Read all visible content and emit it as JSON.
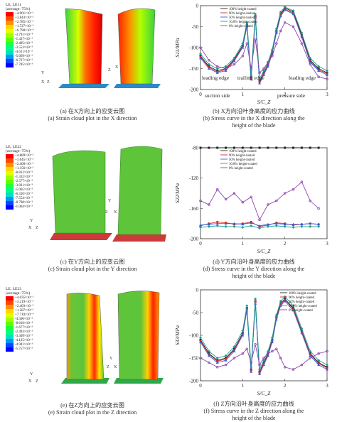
{
  "panels": {
    "a": {
      "legend_title": "LE, LE11",
      "legend_avg": "(average: 75%)",
      "legend_values": [
        "+4.901×10⁻³",
        "+3.843×10⁻³",
        "+2.785×10⁻³",
        "+1.727×10⁻³",
        "+6.790×10⁻⁴",
        "-3.791×10⁻⁴",
        "-1.437×10⁻³",
        "-2.495×10⁻³",
        "-3.553×10⁻³",
        "-4.611×10⁻³",
        "-5.669×10⁻³",
        "-6.727×10⁻³",
        "-7.785×10⁻³"
      ],
      "caption_cn": "(a) 在X方向上的应变云图",
      "caption_en": "(a) Strain cloud plot in the X direction"
    },
    "b": {
      "caption_cn": "(b) X方向沿叶身高度的应力曲线",
      "caption_en1": "(b) Stress curve in the X direction along the",
      "caption_en2": "height of the blade",
      "annotations": [
        "leading edge",
        "trailing edge",
        "leading edge",
        "suction side",
        "pressure side"
      ]
    },
    "c": {
      "legend_title": "LE, LE22",
      "legend_avg": "(average: 75%)",
      "legend_values": [
        "+4.889×10⁻³",
        "+3.645×10⁻³",
        "+2.400×10⁻³",
        "+1.156×10⁻³",
        "-8.812×10⁻⁵",
        "-1.332×10⁻³",
        "-2.577×10⁻³",
        "-3.821×10⁻³",
        "-5.065×10⁻³",
        "-6.310×10⁻³",
        "-7.554×10⁻³",
        "-8.798×10⁻³",
        "-1.004×10⁻²"
      ],
      "caption_cn": "(c) 在Y方向上的应变云图",
      "caption_en": "(c) Strain cloud plot in the Y direction"
    },
    "d": {
      "caption_cn": "(d) Y方向沿叶身高度的应力曲线",
      "caption_en1": "(d) Stress curve in the Y direction along the",
      "caption_en2": "height of the blade"
    },
    "e": {
      "legend_title": "LE, LE33",
      "legend_avg": "(average: 75%)",
      "legend_values": [
        "+4.035×10⁻³",
        "+3.219×10⁻³",
        "+2.403×10⁻³",
        "+1.587×10⁻³",
        "+7.710×10⁻⁴",
        "-4.500×10⁻⁵",
        "-8.610×10⁻⁴",
        "-1.677×10⁻³",
        "-2.493×10⁻³",
        "-3.309×10⁻³",
        "-4.125×10⁻³",
        "-4.941×10⁻³",
        "-5.757×10⁻³"
      ],
      "caption_cn": "(e) 在Z方向上的应变云图",
      "caption_en": "(e) Strain cloud plot in the Z direction"
    },
    "f": {
      "caption_cn": "(f) Z方向沿叶身高度的应力曲线",
      "caption_en1": "(f) Stress curve in the Z direction along the",
      "caption_en2": "height of the blade"
    }
  },
  "colors": {
    "legend_scale": [
      "#ff0000",
      "#ff4a00",
      "#ff9400",
      "#ffd600",
      "#e2ff00",
      "#a0ff00",
      "#5cff00",
      "#1fff32",
      "#00ff84",
      "#00e0c8",
      "#0095ff",
      "#0048ff",
      "#0000ff"
    ],
    "series": [
      "#222222",
      "#d62728",
      "#3b5bdb",
      "#1f9e89",
      "#8e44ad"
    ]
  },
  "chart_data": [
    {
      "type": "line",
      "xlabel": "S/C_Z",
      "ylabel": "S11/MPa",
      "xlim": [
        0,
        3
      ],
      "ylim": [
        -200,
        0
      ],
      "x_ticks": [
        0,
        1,
        2,
        3
      ],
      "y_ticks": [
        0,
        -50,
        -100,
        -150,
        -200
      ],
      "legend_position": "top-center",
      "x": [
        0,
        0.2,
        0.4,
        0.6,
        0.8,
        1.0,
        1.1,
        1.2,
        1.3,
        1.4,
        1.5,
        1.6,
        1.7,
        1.8,
        1.9,
        2.0,
        2.2,
        2.4,
        2.6,
        2.8,
        3.0
      ],
      "series": [
        {
          "name": "100% height-coated",
          "values": [
            -120,
            -145,
            -155,
            -150,
            -128,
            -95,
            -45,
            -170,
            -25,
            -180,
            -160,
            -140,
            -110,
            -60,
            -20,
            -5,
            -15,
            -70,
            -130,
            -150,
            -160
          ]
        },
        {
          "name": "90% height-coated",
          "values": [
            -122,
            -147,
            -158,
            -152,
            -130,
            -97,
            -48,
            -172,
            -28,
            -182,
            -162,
            -142,
            -112,
            -63,
            -22,
            -8,
            -18,
            -73,
            -133,
            -153,
            -162
          ]
        },
        {
          "name": "50% height-coated",
          "values": [
            -125,
            -150,
            -160,
            -155,
            -132,
            -100,
            -50,
            -175,
            -30,
            -185,
            -165,
            -145,
            -115,
            -65,
            -25,
            -10,
            -20,
            -75,
            -135,
            -155,
            -165
          ]
        },
        {
          "name": "10.8% height-coated",
          "values": [
            -115,
            -140,
            -150,
            -145,
            -125,
            -90,
            -40,
            -165,
            -20,
            -175,
            -155,
            -135,
            -105,
            -55,
            -15,
            -3,
            -12,
            -65,
            -125,
            -145,
            -155
          ]
        },
        {
          "name": "0% height-coated",
          "values": [
            -100,
            -130,
            -145,
            -150,
            -140,
            -120,
            -90,
            -150,
            -80,
            -160,
            -150,
            -135,
            -120,
            -90,
            -60,
            -40,
            -50,
            -90,
            -140,
            -170,
            -175
          ]
        }
      ]
    },
    {
      "type": "line",
      "xlabel": "S/C_Z",
      "ylabel": "S22/MPa",
      "xlim": [
        0,
        3
      ],
      "ylim": [
        -200,
        -80
      ],
      "x_ticks": [
        0,
        1,
        2,
        3
      ],
      "y_ticks": [
        -80,
        -120,
        -160,
        -200
      ],
      "legend_position": "top-center",
      "x": [
        0,
        0.2,
        0.4,
        0.6,
        0.8,
        1.0,
        1.2,
        1.4,
        1.6,
        1.8,
        2.0,
        2.2,
        2.4,
        2.6,
        2.8
      ],
      "series": [
        {
          "name": "100% height-coated",
          "values": [
            -75,
            -75,
            -76,
            -76,
            -77,
            -77,
            -76,
            -77,
            -78,
            -77,
            -76,
            -76,
            -75,
            -75,
            -75
          ]
        },
        {
          "name": "90% height-coated",
          "values": [
            -183,
            -180,
            -178,
            -179,
            -181,
            -180,
            -178,
            -184,
            -182,
            -179,
            -180,
            -182,
            -181,
            -180,
            -181
          ]
        },
        {
          "name": "50% height-coated",
          "values": [
            -182,
            -181,
            -180,
            -180,
            -180,
            -181,
            -179,
            -183,
            -181,
            -180,
            -181,
            -181,
            -181,
            -180,
            -181
          ]
        },
        {
          "name": "10.8% height-coated",
          "values": [
            -185,
            -184,
            -183,
            -184,
            -184,
            -185,
            -183,
            -186,
            -184,
            -183,
            -184,
            -185,
            -184,
            -184,
            -184
          ]
        },
        {
          "name": "0% height-coated",
          "values": [
            -150,
            -155,
            -135,
            -148,
            -140,
            -152,
            -145,
            -175,
            -155,
            -150,
            -140,
            -135,
            -125,
            -150,
            -160
          ]
        }
      ]
    },
    {
      "type": "line",
      "xlabel": "S/C_Z",
      "ylabel": "S33/MPa",
      "xlim": [
        0,
        3
      ],
      "ylim": [
        -200,
        0
      ],
      "x_ticks": [
        0,
        1,
        2,
        3
      ],
      "y_ticks": [
        0,
        -50,
        -100,
        -150,
        -200
      ],
      "legend_position": "top-right",
      "x": [
        0,
        0.2,
        0.4,
        0.6,
        0.8,
        1.0,
        1.1,
        1.2,
        1.3,
        1.4,
        1.5,
        1.6,
        1.7,
        1.8,
        1.9,
        2.0,
        2.2,
        2.4,
        2.6,
        2.8,
        3.0
      ],
      "series": [
        {
          "name": "100% height-coated",
          "values": [
            -110,
            -140,
            -155,
            -150,
            -130,
            -95,
            -40,
            -175,
            -25,
            -180,
            -160,
            -140,
            -110,
            -60,
            -30,
            -20,
            -40,
            -90,
            -140,
            -160,
            -170
          ]
        },
        {
          "name": "90% height-coated",
          "values": [
            -112,
            -142,
            -157,
            -152,
            -132,
            -97,
            -42,
            -177,
            -27,
            -182,
            -162,
            -142,
            -112,
            -62,
            -32,
            -22,
            -42,
            -92,
            -142,
            -162,
            -172
          ]
        },
        {
          "name": "50% height-coated",
          "values": [
            -115,
            -145,
            -160,
            -155,
            -135,
            -100,
            -45,
            -180,
            -30,
            -185,
            -165,
            -145,
            -115,
            -65,
            -35,
            -25,
            -45,
            -95,
            -145,
            -165,
            -175
          ]
        },
        {
          "name": "10.8% height-coated",
          "values": [
            -105,
            -135,
            -150,
            -145,
            -125,
            -90,
            -35,
            -170,
            -20,
            -175,
            -155,
            -135,
            -105,
            -55,
            -25,
            -15,
            -35,
            -85,
            -135,
            -155,
            -165
          ]
        },
        {
          "name": "0% height-coated",
          "values": [
            -150,
            -160,
            -170,
            -165,
            -150,
            -140,
            -130,
            -160,
            -120,
            -165,
            -150,
            -140,
            -135,
            -130,
            -150,
            -170,
            -175,
            -165,
            -150,
            -140,
            -135
          ]
        }
      ]
    }
  ]
}
